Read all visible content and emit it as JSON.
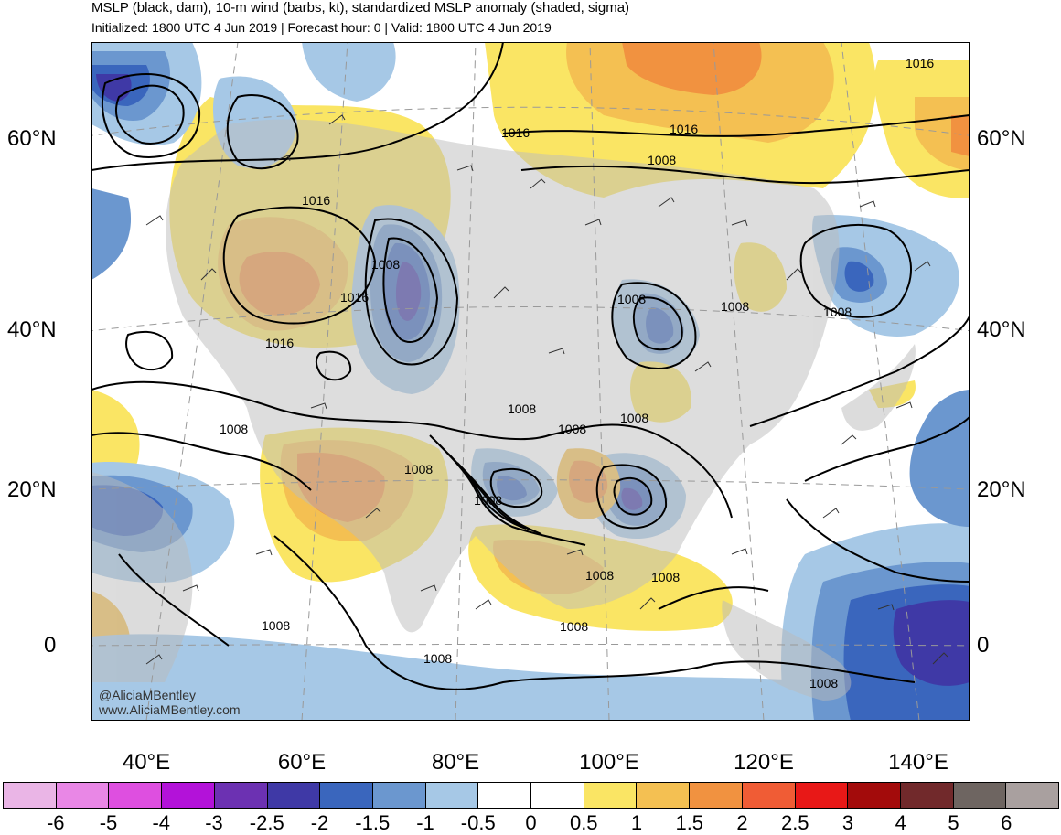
{
  "header": {
    "title": "MSLP (black, dam), 10-m wind (barbs, kt), standardized MSLP anomaly (shaded, sigma)",
    "subtitle": "Initialized: 1800 UTC 4 Jun 2019 | Forecast hour: 0 | Valid: 1800 UTC 4 Jun 2019"
  },
  "axes": {
    "lat_labels": [
      "60°N",
      "40°N",
      "20°N",
      "0"
    ],
    "lon_labels": [
      "40°E",
      "60°E",
      "80°E",
      "100°E",
      "120°E",
      "140°E"
    ]
  },
  "contour_labels": [
    "1016",
    "1016",
    "1016",
    "1016",
    "1016",
    "1016",
    "1008",
    "1008",
    "1008",
    "1008",
    "1008",
    "1008",
    "1008",
    "1008",
    "1008",
    "1008",
    "1008",
    "1008",
    "1008",
    "1008",
    "1008"
  ],
  "credits": {
    "handle": "@AliciaMBentley",
    "website": "www.AliciaMBentley.com"
  },
  "colorbar": {
    "colors": [
      "#eab5e6",
      "#e987e6",
      "#de4fe0",
      "#b312d9",
      "#6c31b2",
      "#3f39a6",
      "#3a66bd",
      "#6b97cf",
      "#a6c8e6",
      "#ffffff",
      "#ffffff",
      "#fae564",
      "#f4c052",
      "#f19240",
      "#f05c35",
      "#e81817",
      "#a30b0b",
      "#71292b",
      "#6e6561",
      "#a9a09f"
    ],
    "labels": [
      "-6",
      "-5",
      "-4",
      "-3",
      "-2.5",
      "-2",
      "-1.5",
      "-1",
      "-0.5",
      "0",
      "0.5",
      "1",
      "1.5",
      "2",
      "2.5",
      "3",
      "4",
      "5",
      "6"
    ]
  }
}
